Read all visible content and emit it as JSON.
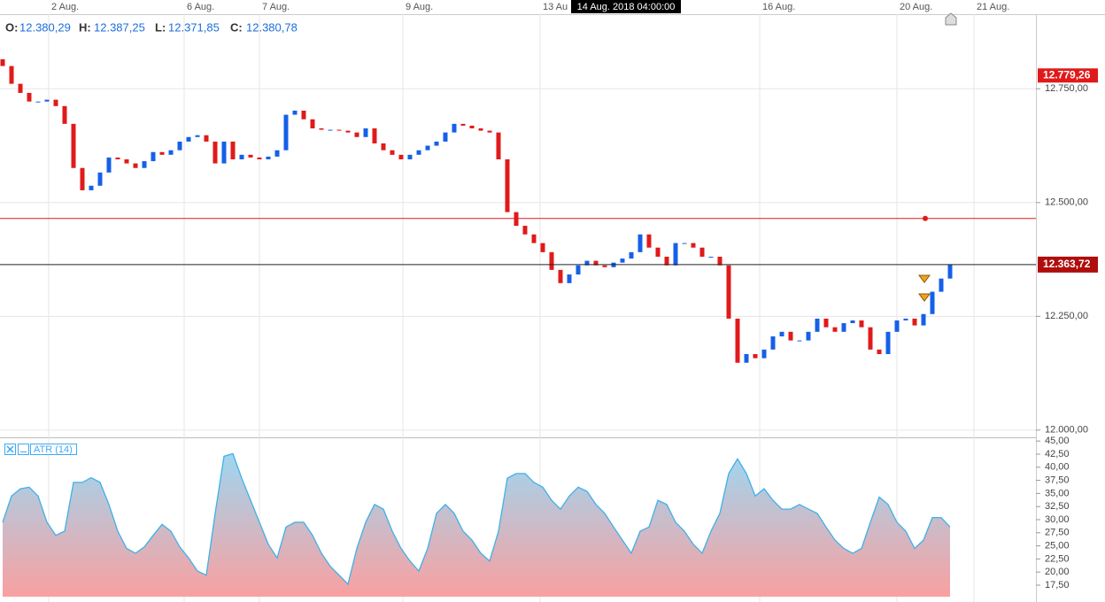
{
  "chart_data": [
    {
      "type": "candlestick",
      "crosshair_label": "14 Aug. 2018 04:00:00",
      "ohlc": {
        "labels": [
          "O:",
          "H:",
          "L:",
          "C:"
        ],
        "values": [
          "12.380,29",
          "12.387,25",
          "12.371,85",
          "12.380,78"
        ]
      },
      "up_color": "#1560e8",
      "down_color": "#e01a1a",
      "open": [
        12815,
        12800,
        12761,
        12741,
        12722,
        12722,
        12726,
        12712,
        12673,
        12576,
        12527,
        12537,
        12566,
        12599,
        12595,
        12586,
        12576,
        12591,
        12611,
        12605,
        12615,
        12634,
        12644,
        12648,
        12634,
        12586,
        12634,
        12595,
        12605,
        12599,
        12595,
        12601,
        12615,
        12693,
        12702,
        12683,
        12663,
        12660,
        12660,
        12658,
        12654,
        12644,
        12663,
        12630,
        12615,
        12605,
        12595,
        12605,
        12615,
        12625,
        12634,
        12654,
        12673,
        12669,
        12663,
        12658,
        12654,
        12595,
        12479,
        12449,
        12430,
        12411,
        12391,
        12352,
        12323,
        12342,
        12362,
        12372,
        12362,
        12358,
        12368,
        12377,
        12391,
        12430,
        12401,
        12381,
        12362,
        12411,
        12411,
        12401,
        12381,
        12381,
        12362,
        12245,
        12148,
        12167,
        12158,
        12177,
        12206,
        12216,
        12197,
        12197,
        12216,
        12245,
        12226,
        12216,
        12235,
        12241,
        12226,
        12177,
        12167,
        12216,
        12241,
        12245,
        12230,
        12255,
        12304,
        12333
      ],
      "close": [
        12800,
        12761,
        12741,
        12722,
        12722,
        12726,
        12712,
        12673,
        12576,
        12527,
        12537,
        12566,
        12599,
        12595,
        12586,
        12576,
        12591,
        12611,
        12605,
        12615,
        12634,
        12644,
        12648,
        12634,
        12586,
        12634,
        12595,
        12605,
        12599,
        12595,
        12601,
        12615,
        12693,
        12702,
        12683,
        12663,
        12660,
        12660,
        12658,
        12654,
        12644,
        12663,
        12630,
        12615,
        12605,
        12595,
        12605,
        12615,
        12625,
        12634,
        12654,
        12673,
        12669,
        12663,
        12658,
        12654,
        12595,
        12479,
        12449,
        12430,
        12411,
        12391,
        12352,
        12323,
        12342,
        12362,
        12372,
        12362,
        12358,
        12368,
        12377,
        12391,
        12430,
        12401,
        12381,
        12362,
        12411,
        12411,
        12401,
        12381,
        12381,
        12362,
        12245,
        12148,
        12167,
        12158,
        12177,
        12206,
        12216,
        12197,
        12197,
        12216,
        12245,
        12226,
        12216,
        12235,
        12241,
        12226,
        12177,
        12167,
        12216,
        12241,
        12245,
        12230,
        12255,
        12304,
        12333,
        12364
      ],
      "xlim": [
        -0.3,
        116.7
      ],
      "xticks": [
        {
          "value": 5.2,
          "label": "2 Aug."
        },
        {
          "value": 20.5,
          "label": "6 Aug."
        },
        {
          "value": 29,
          "label": "7 Aug."
        },
        {
          "value": 45.2,
          "label": "9 Aug."
        },
        {
          "value": 60.7,
          "label": "13 Au"
        },
        {
          "value": 85.5,
          "label": "16 Aug."
        },
        {
          "value": 101,
          "label": "20 Aug."
        },
        {
          "value": 109.7,
          "label": "21 Aug."
        }
      ],
      "ylim": [
        11988,
        12914
      ],
      "yticks": [
        {
          "value": 12750,
          "label": "12.750,00"
        },
        {
          "value": 12500,
          "label": "12.500,00"
        },
        {
          "value": 12250,
          "label": "12.250,00"
        },
        {
          "value": 12000,
          "label": "12.000,00"
        }
      ],
      "high_marker": {
        "value": 12779.26,
        "label": "12.779,26"
      },
      "current_price": {
        "value": 12363.72,
        "label": "12.363,72"
      },
      "alert_level": 12465,
      "grid": true
    },
    {
      "type": "area",
      "title": "ATR (14)",
      "color": "#3fb0e8",
      "values": [
        29.5,
        34.5,
        35.9,
        36.2,
        34.5,
        29.5,
        27,
        27.8,
        37.1,
        37.1,
        38,
        37.1,
        32.9,
        27.8,
        24.5,
        23.6,
        24.8,
        27,
        29.1,
        27.8,
        24.8,
        22.7,
        20.2,
        19.4,
        31.2,
        42.1,
        42.6,
        37.9,
        33.7,
        29.5,
        25.3,
        22.7,
        28.6,
        29.5,
        29.5,
        27,
        23.6,
        21.1,
        19.4,
        17.7,
        24.5,
        29.5,
        32.9,
        32,
        27.8,
        24.5,
        22.1,
        20.2,
        24.5,
        31.2,
        32.9,
        31.2,
        27.8,
        26.1,
        23.6,
        22.1,
        27.8,
        37.9,
        38.8,
        38.8,
        37.1,
        36.2,
        33.7,
        32,
        34.5,
        36.2,
        35.4,
        32.9,
        31.2,
        28.6,
        26.1,
        23.6,
        27.8,
        28.6,
        33.7,
        32.9,
        29.5,
        27.8,
        25.3,
        23.6,
        27.8,
        31.2,
        38.8,
        41.6,
        38.8,
        34.5,
        35.9,
        33.7,
        32,
        32,
        32.9,
        32,
        31.2,
        28.6,
        26.1,
        24.5,
        23.6,
        24.5,
        29.5,
        34.3,
        32.9,
        29.5,
        27.8,
        24.5,
        26.1,
        30.4,
        30.4,
        28.6
      ],
      "ylim": [
        15.3,
        45.2
      ],
      "yticks": [
        {
          "value": 45,
          "label": "45,00"
        },
        {
          "value": 42.5,
          "label": "42,50"
        },
        {
          "value": 40,
          "label": "40,00"
        },
        {
          "value": 37.5,
          "label": "37,50"
        },
        {
          "value": 35,
          "label": "35,00"
        },
        {
          "value": 32.5,
          "label": "32,50"
        },
        {
          "value": 30,
          "label": "30,00"
        },
        {
          "value": 27.5,
          "label": "27,50"
        },
        {
          "value": 25,
          "label": "25,00"
        },
        {
          "value": 22.5,
          "label": "22,50"
        },
        {
          "value": 20,
          "label": "20,00"
        },
        {
          "value": 17.5,
          "label": "17,50"
        }
      ]
    }
  ]
}
